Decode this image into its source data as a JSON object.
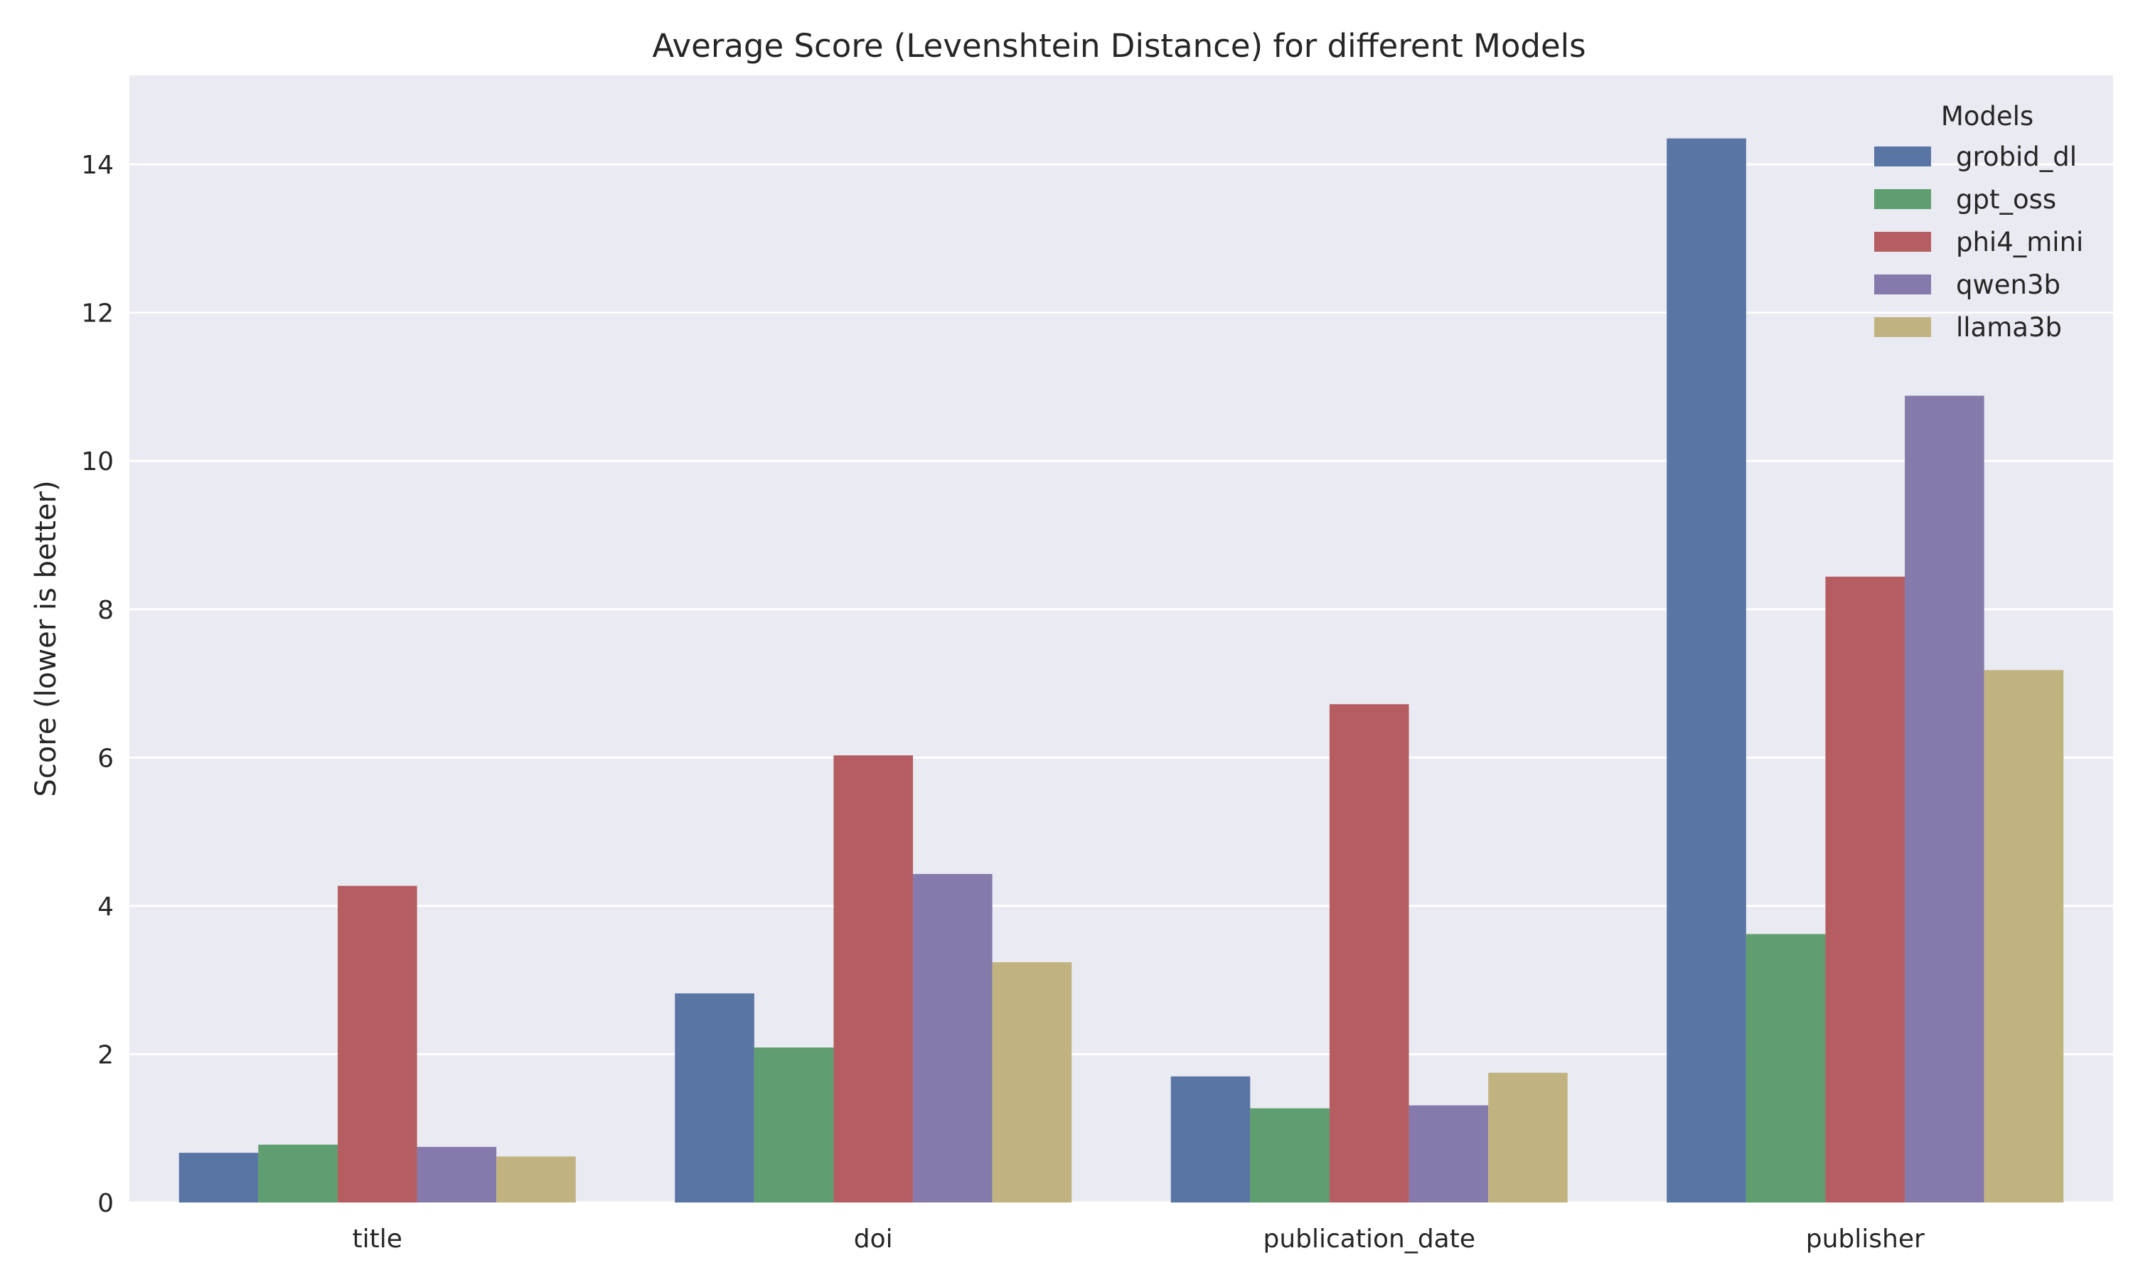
{
  "chart_data": {
    "type": "bar",
    "title": "Average Score (Levenshtein Distance) for different Models",
    "xlabel": "",
    "ylabel": "Score (lower is better)",
    "categories": [
      "title",
      "doi",
      "publication_date",
      "publisher"
    ],
    "ylim": [
      0,
      15.2
    ],
    "yticks": [
      0,
      2,
      4,
      6,
      8,
      10,
      12,
      14
    ],
    "grid": true,
    "legend": {
      "title": "Models",
      "placement": "top-right"
    },
    "series": [
      {
        "name": "grobid_dl",
        "color": "#5975a4",
        "values": [
          0.67,
          2.82,
          1.7,
          14.35
        ]
      },
      {
        "name": "gpt_oss",
        "color": "#5f9e6e",
        "values": [
          0.78,
          2.09,
          1.27,
          3.62
        ]
      },
      {
        "name": "phi4_mini",
        "color": "#b55d60",
        "values": [
          4.27,
          6.03,
          6.72,
          8.44
        ]
      },
      {
        "name": "qwen3b",
        "color": "#857aab",
        "values": [
          0.75,
          4.43,
          1.31,
          10.88
        ]
      },
      {
        "name": "llama3b",
        "color": "#c1b37f",
        "values": [
          0.62,
          3.24,
          1.75,
          7.18
        ]
      }
    ]
  }
}
